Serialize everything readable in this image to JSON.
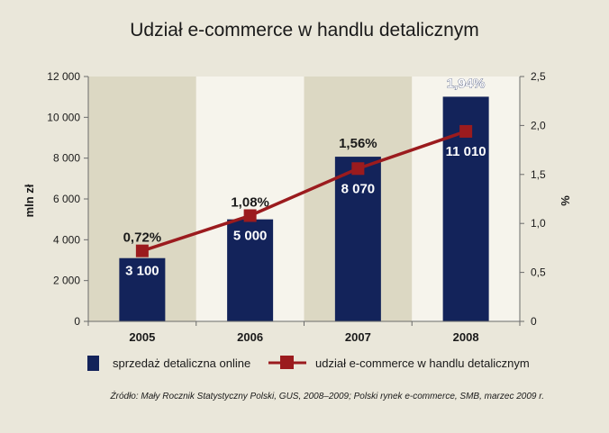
{
  "chart_data": {
    "type": "bar",
    "title": "Udział e-commerce w handlu detalicznym",
    "ylabel": "mln zł",
    "y2label": "%",
    "categories": [
      "2005",
      "2006",
      "2007",
      "2008"
    ],
    "ylim": [
      0,
      12000
    ],
    "y2lim": [
      0,
      2.5
    ],
    "yticks": [
      "0",
      "2 000",
      "4 000",
      "6 000",
      "8 000",
      "10 000",
      "12 000"
    ],
    "y2ticks": [
      "0",
      "0,5",
      "1,0",
      "1,5",
      "2,0",
      "2,5"
    ],
    "series": [
      {
        "name": "sprzedaż detaliczna online",
        "type": "bar",
        "axis": "left",
        "values": [
          3100,
          5000,
          8070,
          11010
        ],
        "labels": [
          "3 100",
          "5 000",
          "8 070",
          "11 010"
        ]
      },
      {
        "name": "udział e-commerce w handlu detalicznym",
        "type": "line",
        "axis": "right",
        "values": [
          0.72,
          1.08,
          1.56,
          1.94
        ],
        "labels": [
          "0,72%",
          "1,08%",
          "1,56%",
          "1,94%"
        ]
      }
    ],
    "colors": {
      "bar": "#13235a",
      "line": "#9b1b1e",
      "band_dark": "#dcd8c3",
      "band_light": "#f6f4ec",
      "background": "#eae7da"
    },
    "legend": "bottom",
    "grid": false
  },
  "source_note": "Źródło: Mały Rocznik Statystyczny Polski, GUS, 2008–2009; Polski rynek e-commerce, SMB, marzec 2009 r."
}
